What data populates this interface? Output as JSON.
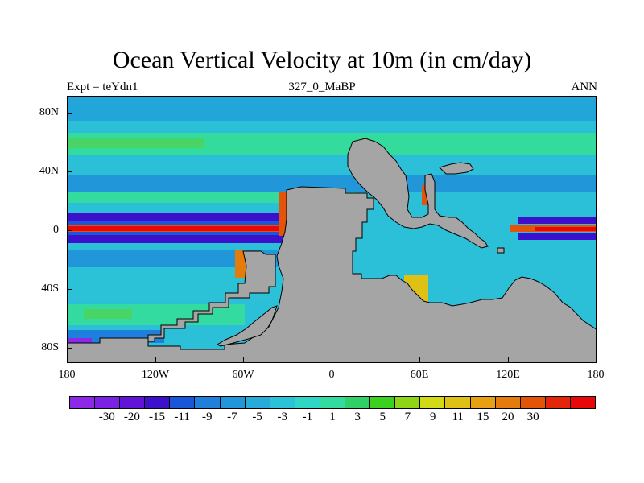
{
  "title": "Ocean Vertical Velocity at 10m (in cm/day)",
  "subtitle_left": "Expt = teYdn1",
  "subtitle_center": "327_0_MaBP",
  "subtitle_right": "ANN",
  "y_ticks": [
    {
      "label": "80N",
      "lat": 80
    },
    {
      "label": "40N",
      "lat": 40
    },
    {
      "label": "0",
      "lat": 0
    },
    {
      "label": "40S",
      "lat": -40
    },
    {
      "label": "80S",
      "lat": -80
    }
  ],
  "x_ticks": [
    {
      "label": "180",
      "lon": -180
    },
    {
      "label": "120W",
      "lon": -120
    },
    {
      "label": "60W",
      "lon": -60
    },
    {
      "label": "0",
      "lon": 0
    },
    {
      "label": "60E",
      "lon": 60
    },
    {
      "label": "120E",
      "lon": 120
    },
    {
      "label": "180",
      "lon": 180
    }
  ],
  "colorbar": {
    "colors": [
      "#8d28e8",
      "#7a21e4",
      "#6213d8",
      "#3d10cc",
      "#1a56d9",
      "#1f80db",
      "#2196d9",
      "#27abd8",
      "#2bc2d7",
      "#30d6c4",
      "#33dba1",
      "#2fd066",
      "#3bd11f",
      "#8fd416",
      "#d2da16",
      "#dfc115",
      "#e8a012",
      "#e47c0d",
      "#e3540a",
      "#e32509",
      "#e80808"
    ],
    "labels": [
      "-30",
      "-20",
      "-15",
      "-11",
      "-9",
      "-7",
      "-5",
      "-3",
      "-1",
      "1",
      "3",
      "5",
      "7",
      "9",
      "11",
      "15",
      "20",
      "30"
    ]
  },
  "chart_data": {
    "type": "heatmap",
    "title": "Ocean Vertical Velocity at 10m (in cm/day)",
    "units": "cm/day",
    "experiment": "teYdn1",
    "period": "327_0_MaBP",
    "season": "ANN",
    "lon_range": [
      -180,
      180
    ],
    "lat_range": [
      -90,
      90
    ],
    "contour_levels": [
      -30,
      -20,
      -15,
      -11,
      -9,
      -7,
      -5,
      -3,
      -1,
      1,
      3,
      5,
      7,
      9,
      11,
      15,
      20,
      30
    ],
    "land_color": "#a5a5a5",
    "features": [
      {
        "name": "equatorial upwelling band",
        "lon": [
          -180,
          -20
        ],
        "lat": [
          -3,
          3
        ],
        "value": 30
      },
      {
        "name": "equatorial downwelling flank",
        "lon": [
          -180,
          -30
        ],
        "lat": [
          -8,
          8
        ],
        "value": -30
      },
      {
        "name": "eastern equatorial upwelling",
        "lon": [
          105,
          180
        ],
        "lat": [
          -2,
          2
        ],
        "value": 30
      },
      {
        "name": "northern subtropical downwelling",
        "lon": [
          -180,
          180
        ],
        "lat": [
          20,
          35
        ],
        "value": -5
      },
      {
        "name": "southern subtropical downwelling",
        "lon": [
          -180,
          0
        ],
        "lat": [
          -35,
          -20
        ],
        "value": -5
      },
      {
        "name": "northern subpolar upwelling",
        "lon": [
          -180,
          180
        ],
        "lat": [
          55,
          65
        ],
        "value": 5
      },
      {
        "name": "southern subpolar upwelling",
        "lon": [
          -180,
          -30
        ],
        "lat": [
          -65,
          -55
        ],
        "value": 5
      }
    ]
  }
}
